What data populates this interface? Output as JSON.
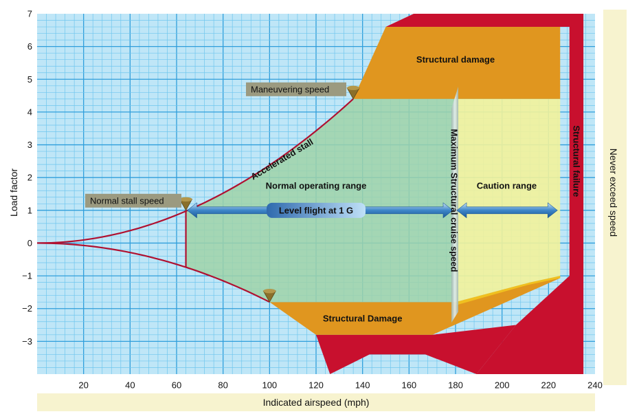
{
  "chart_data": {
    "type": "area",
    "title": "",
    "xlabel": "Indicated airspeed (mph)",
    "ylabel": "Load factor",
    "right_label": "Never exceed speed",
    "xlim": [
      0,
      240
    ],
    "ylim": [
      -4,
      7
    ],
    "x_ticks": [
      20,
      40,
      60,
      80,
      100,
      120,
      140,
      160,
      180,
      200,
      220,
      240
    ],
    "y_ticks": [
      {
        "v": 7,
        "t": "7"
      },
      {
        "v": 6,
        "t": "6"
      },
      {
        "v": 5,
        "t": "5"
      },
      {
        "v": 4,
        "t": "4"
      },
      {
        "v": 3,
        "t": "3"
      },
      {
        "v": 2,
        "t": "2"
      },
      {
        "v": 1,
        "t": "1"
      },
      {
        "v": 0,
        "t": "0"
      },
      {
        "v": -1,
        "t": "−1"
      },
      {
        "v": -2,
        "t": "−2"
      },
      {
        "v": -3,
        "t": "−3"
      }
    ],
    "grid": true,
    "curves": {
      "accelerated_stall": {
        "name": "Accelerated stall",
        "x": [
          0,
          20,
          40,
          60,
          64,
          80,
          100,
          120,
          136
        ],
        "y": [
          0,
          0.1,
          0.39,
          0.88,
          1.0,
          1.56,
          2.44,
          3.52,
          4.4
        ]
      },
      "negative_stall": {
        "x": [
          0,
          20,
          40,
          64,
          100
        ],
        "y": [
          0,
          -0.07,
          -0.28,
          -0.72,
          -1.8
        ]
      }
    },
    "key_speeds": {
      "normal_stall": {
        "label": "Normal stall speed",
        "x": 64,
        "y": 1.0
      },
      "maneuvering": {
        "label": "Maneuvering speed",
        "x": 136,
        "y": 4.4
      },
      "negative_stall_point": {
        "x": 100,
        "y": -1.8
      },
      "max_structural_cruise": {
        "label": "Maximum Structural cruise speed",
        "x": 180
      },
      "never_exceed": {
        "x": 225
      }
    },
    "regions": {
      "normal_operating": {
        "label": "Normal operating range"
      },
      "caution": {
        "label": "Caution range"
      },
      "structural_damage_top": {
        "label": "Structural damage"
      },
      "structural_damage_bottom": {
        "label": "Structural Damage"
      },
      "structural_failure": {
        "label": "Structural  failure"
      }
    },
    "level_flight": {
      "label": "Level flight at 1 G",
      "y": 1.0,
      "x_start": 64,
      "x_end": 225
    },
    "colors": {
      "grid_bg": "#bfe6f7",
      "grid_minor": "#6fc6ee",
      "grid_major": "#2f9edb",
      "normal": "#9fd2a8",
      "caution": "#f2f29a",
      "damage": "#e0961f",
      "failure": "#c8102e",
      "curve": "#b01030",
      "axis_band": "#f7f3cf",
      "label_box": "#9b9a80",
      "arrow": "#3d86c8"
    }
  }
}
